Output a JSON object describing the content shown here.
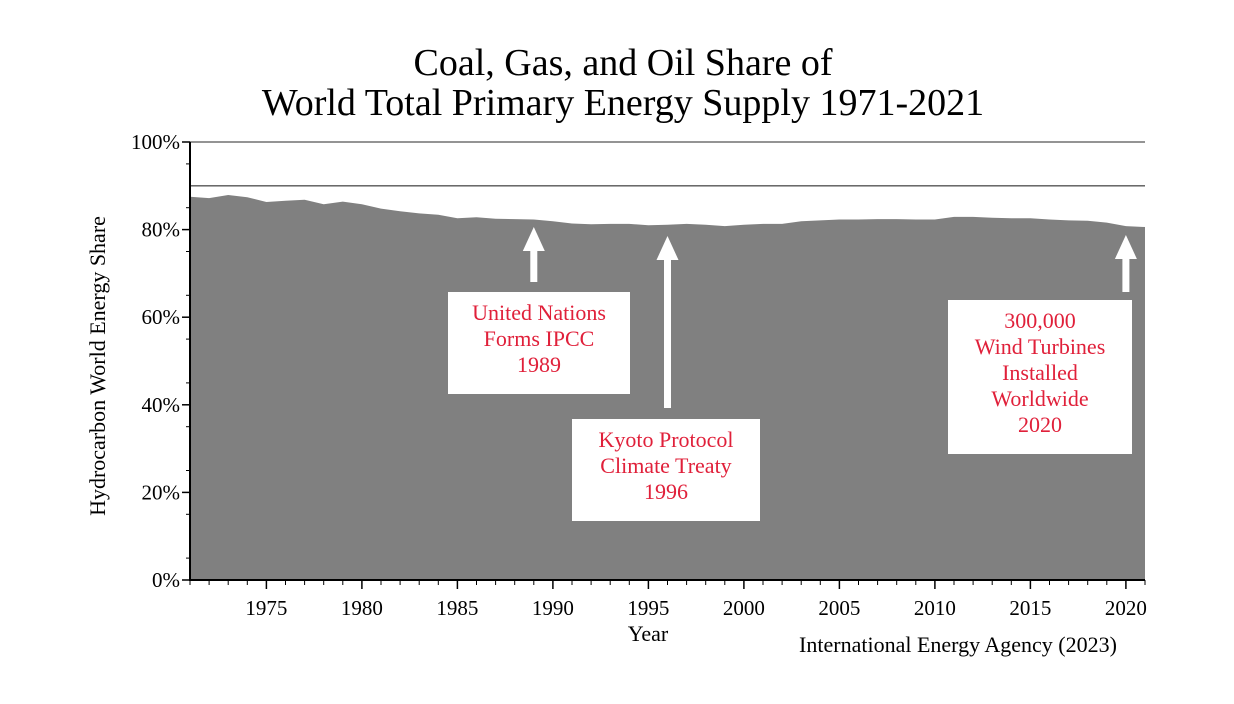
{
  "chart_data": {
    "type": "area",
    "title_lines": [
      "Coal, Gas, and Oil Share of",
      "World Total Primary Energy Supply 1971-2021"
    ],
    "xlabel": "Year",
    "ylabel": "Hydrocarbon World Energy Share",
    "source": "International Energy Agency (2023)",
    "xlim": [
      1971,
      2021
    ],
    "ylim": [
      0,
      100
    ],
    "x_ticks": [
      1975,
      1980,
      1985,
      1990,
      1995,
      2000,
      2005,
      2010,
      2015,
      2020
    ],
    "x_tick_labels": [
      "1975",
      "1980",
      "1985",
      "1990",
      "1995",
      "2000",
      "2005",
      "2010",
      "2015",
      "2020"
    ],
    "y_ticks": [
      0,
      20,
      40,
      60,
      80,
      100
    ],
    "y_tick_labels": [
      "0%",
      "20%",
      "40%",
      "60%",
      "80%",
      "100%"
    ],
    "reference_lines": [
      100,
      90
    ],
    "fill_color": "#808080",
    "annotation_color": "#e0203a",
    "series": [
      {
        "x": [
          1971,
          1972,
          1973,
          1974,
          1975,
          1976,
          1977,
          1978,
          1979,
          1980,
          1981,
          1982,
          1983,
          1984,
          1985,
          1986,
          1987,
          1988,
          1989,
          1990,
          1991,
          1992,
          1993,
          1994,
          1995,
          1996,
          1997,
          1998,
          1999,
          2000,
          2001,
          2002,
          2003,
          2004,
          2005,
          2006,
          2007,
          2008,
          2009,
          2010,
          2011,
          2012,
          2013,
          2014,
          2015,
          2016,
          2017,
          2018,
          2019,
          2020,
          2021
        ],
        "values": [
          87.5,
          87.2,
          87.9,
          87.4,
          86.3,
          86.6,
          86.8,
          85.8,
          86.4,
          85.8,
          84.8,
          84.2,
          83.7,
          83.4,
          82.6,
          82.8,
          82.5,
          82.4,
          82.3,
          81.9,
          81.4,
          81.2,
          81.3,
          81.3,
          81.0,
          81.1,
          81.3,
          81.1,
          80.8,
          81.1,
          81.3,
          81.3,
          81.9,
          82.1,
          82.3,
          82.3,
          82.4,
          82.4,
          82.3,
          82.3,
          82.9,
          82.9,
          82.7,
          82.6,
          82.6,
          82.3,
          82.1,
          82.0,
          81.6,
          80.8,
          80.6
        ]
      }
    ],
    "annotations": [
      {
        "lines": [
          "United Nations",
          "Forms IPCC",
          "1989"
        ],
        "year": 1989
      },
      {
        "lines": [
          "Kyoto Protocol",
          "Climate Treaty",
          "1996"
        ],
        "year": 1996
      },
      {
        "lines": [
          "300,000",
          "Wind Turbines",
          "Installed",
          "Worldwide",
          "2020"
        ],
        "year": 2020
      }
    ]
  }
}
